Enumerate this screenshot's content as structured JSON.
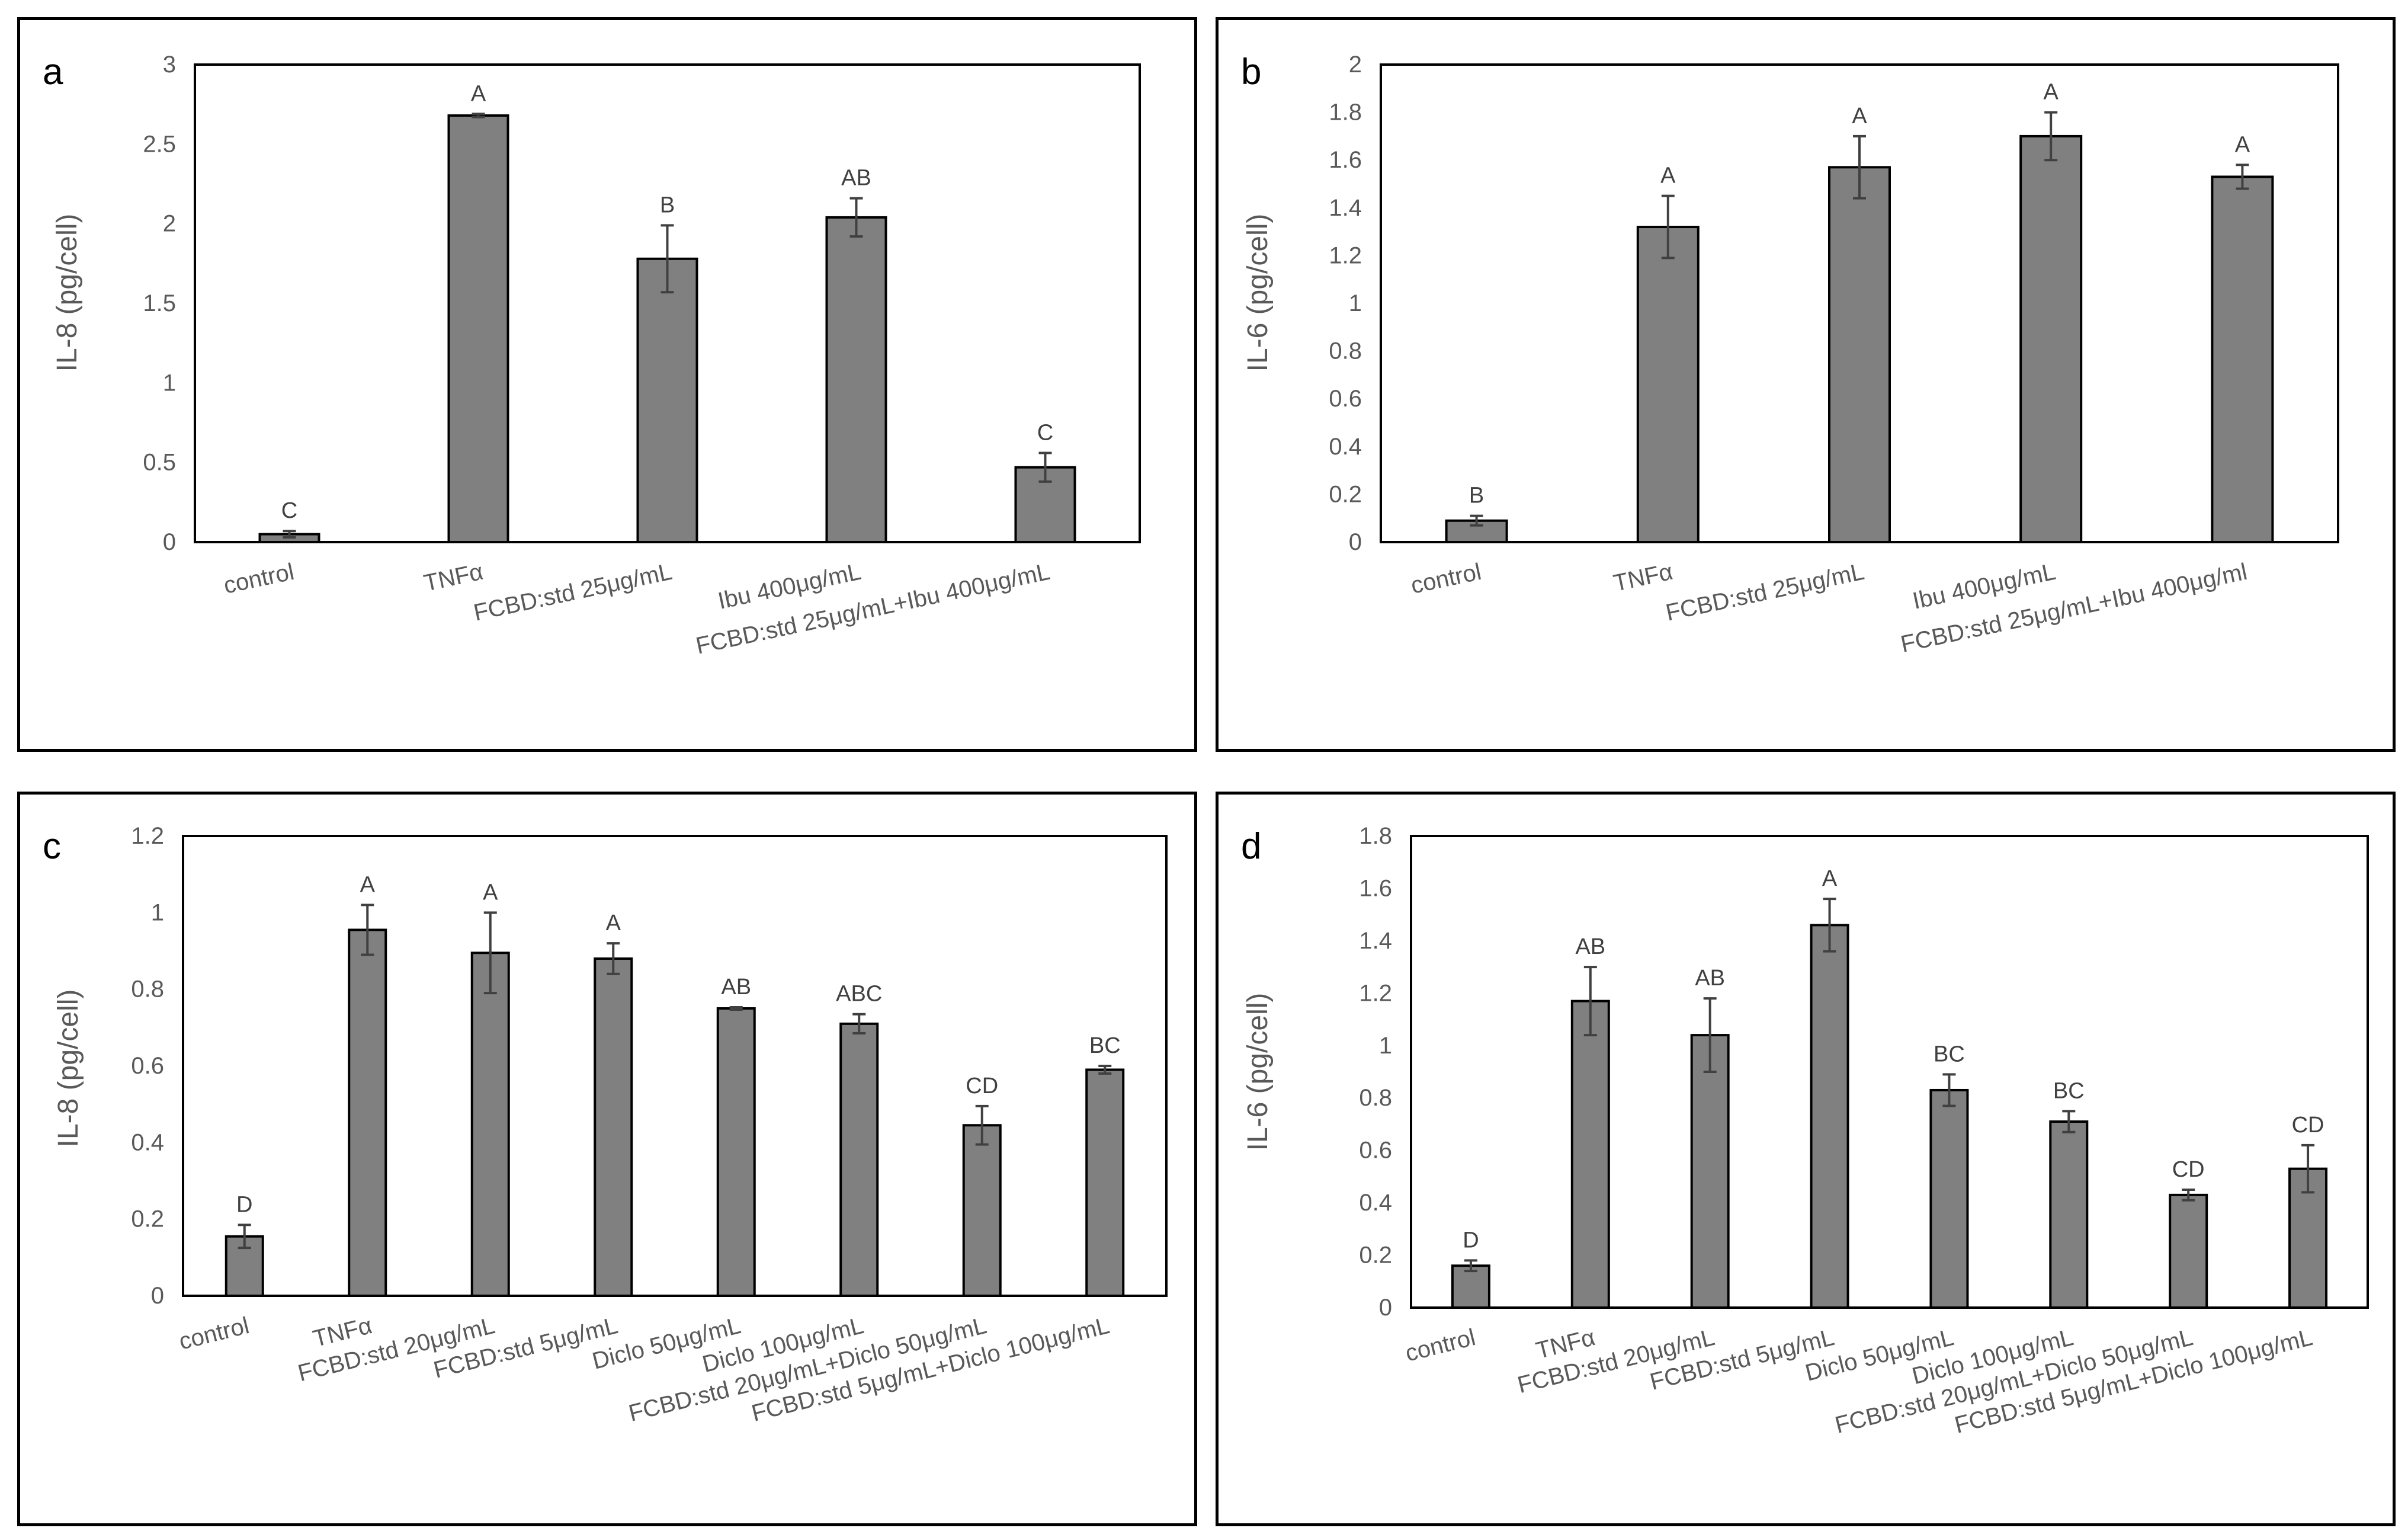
{
  "colors": {
    "bar": "#808080",
    "bar_edge": "#000000",
    "error_bar": "#404040",
    "axis": "#000000",
    "text": "#595959"
  },
  "chart_data": [
    {
      "panel": "a",
      "type": "bar",
      "title": "",
      "xlabel": "",
      "ylabel": "IL-8  (pg/cell)",
      "ylim": [
        0,
        3
      ],
      "yticks": [
        "0",
        "0.5",
        "1",
        "1.5",
        "2",
        "2.5",
        "3"
      ],
      "categories": [
        "control",
        "TNFα",
        "FCBD:std 25μg/mL",
        "Ibu 400μg/mL",
        "FCBD:std 25μg/mL+Ibu 400μg/mL"
      ],
      "values": [
        0.05,
        2.68,
        1.78,
        2.04,
        0.47
      ],
      "errors": [
        0.02,
        0.01,
        0.21,
        0.12,
        0.09
      ],
      "labels": [
        "C",
        "A",
        "B",
        "AB",
        "C"
      ]
    },
    {
      "panel": "b",
      "type": "bar",
      "title": "",
      "xlabel": "",
      "ylabel": "IL-6 (pg/cell)",
      "ylim": [
        0,
        2
      ],
      "yticks": [
        "0",
        "0.2",
        "0.4",
        "0.6",
        "0.8",
        "1",
        "1.2",
        "1.4",
        "1.6",
        "1.8",
        "2"
      ],
      "categories": [
        "control",
        "TNFα",
        "FCBD:std 25μg/mL",
        "Ibu 400μg/mL",
        "FCBD:std 25μg/mL+Ibu 400μg/ml"
      ],
      "values": [
        0.09,
        1.32,
        1.57,
        1.7,
        1.53
      ],
      "errors": [
        0.02,
        0.13,
        0.13,
        0.1,
        0.05
      ],
      "labels": [
        "B",
        "A",
        "A",
        "A",
        "A"
      ]
    },
    {
      "panel": "c",
      "type": "bar",
      "title": "",
      "xlabel": "",
      "ylabel": "IL-8 (pg/cell)",
      "ylim": [
        0,
        1.2
      ],
      "yticks": [
        "0",
        "0.2",
        "0.4",
        "0.6",
        "0.8",
        "1",
        "1.2"
      ],
      "categories": [
        "control",
        "TNFα",
        "FCBD:std 20μg/mL",
        "FCBD:std 5μg/mL",
        "Diclo 50μg/mL",
        "Diclo 100μg/mL",
        "FCBD:std 20μg/mL+Diclo 50μg/mL",
        "FCBD:std 5μg/mL+Diclo 100μg/mL"
      ],
      "values": [
        0.155,
        0.955,
        0.895,
        0.88,
        0.75,
        0.71,
        0.445,
        0.59
      ],
      "errors": [
        0.03,
        0.065,
        0.105,
        0.04,
        0.003,
        0.025,
        0.05,
        0.01
      ],
      "labels": [
        "D",
        "A",
        "A",
        "A",
        "AB",
        "ABC",
        "CD",
        "BC"
      ]
    },
    {
      "panel": "d",
      "type": "bar",
      "title": "",
      "xlabel": "",
      "ylabel": "IL-6 (pg/cell)",
      "ylim": [
        0,
        1.8
      ],
      "yticks": [
        "0",
        "0.2",
        "0.4",
        "0.6",
        "0.8",
        "1",
        "1.2",
        "1.4",
        "1.6",
        "1.8"
      ],
      "categories": [
        "control",
        "TNFα",
        "FCBD:std 20μg/mL",
        "FCBD:std 5μg/mL",
        "Diclo 50μg/mL",
        "Diclo 100μg/mL",
        "FCBD:std 20μg/mL+Diclo 50μg/mL",
        "FCBD:std 5μg/mL+Diclo 100μg/mL"
      ],
      "values": [
        0.16,
        1.17,
        1.04,
        1.46,
        0.83,
        0.71,
        0.43,
        0.53
      ],
      "errors": [
        0.02,
        0.13,
        0.14,
        0.1,
        0.06,
        0.04,
        0.02,
        0.09
      ],
      "labels": [
        "D",
        "AB",
        "AB",
        "A",
        "BC",
        "BC",
        "CD",
        "CD"
      ]
    }
  ],
  "panels": [
    {
      "id": "a",
      "label": "a"
    },
    {
      "id": "b",
      "label": "b"
    },
    {
      "id": "c",
      "label": "c"
    },
    {
      "id": "d",
      "label": "d"
    }
  ]
}
